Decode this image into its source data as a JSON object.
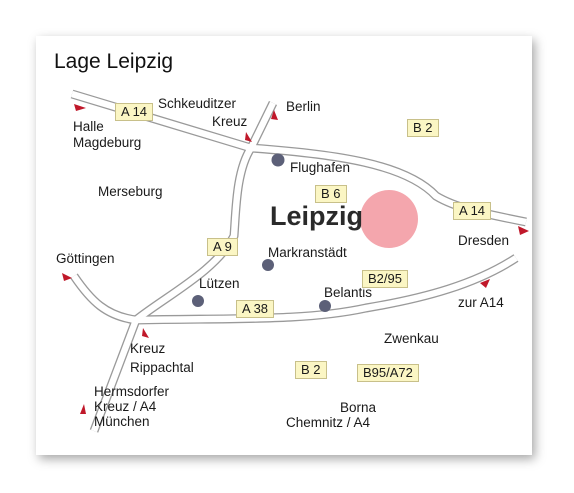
{
  "map": {
    "title": "Lage Leipzig",
    "city": "Leipzig",
    "places": {
      "halle": "Halle",
      "magdeburg": "Magdeburg",
      "schkeuditzer": "Schkeuditzer",
      "kreuz_schk": "Kreuz",
      "berlin": "Berlin",
      "flughafen": "Flughafen",
      "merseburg": "Merseburg",
      "dresden": "Dresden",
      "goettingen": "Göttingen",
      "markranstaedt": "Markranstädt",
      "luetzen": "Lützen",
      "belantis": "Belantis",
      "zur_a14": "zur A14",
      "zwenkau": "Zwenkau",
      "kreuz_rippachtal": "Kreuz",
      "rippachtal": "Rippachtal",
      "hermsdorfer": "Hermsdorfer",
      "kreuz_a4": "Kreuz / A4",
      "muenchen": "München",
      "borna": "Borna",
      "chemnitz": "Chemnitz / A4"
    },
    "shields": {
      "a14_nw": "A 14",
      "b2_ne": "B 2",
      "b6": "B 6",
      "a14_e": "A 14",
      "a9": "A 9",
      "b2_95": "B2/95",
      "a38": "A 38",
      "b2_s": "B 2",
      "b95_a72": "B95/A72"
    },
    "colors": {
      "road_fill": "#ffffff",
      "road_edge": "#9a9a9a",
      "shield_bg": "#fbf6c4",
      "city_circle": "#f4a6ad",
      "poi_dot": "#5c6078",
      "arrow": "#c0182a"
    }
  }
}
